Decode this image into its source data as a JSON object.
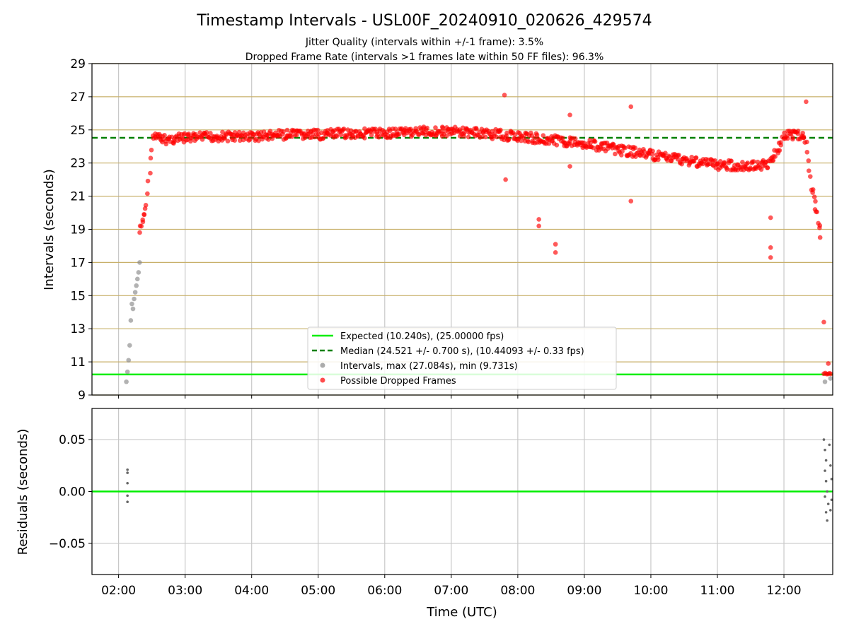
{
  "chart_data": [
    {
      "type": "scatter",
      "title": "Timestamp Intervals - USL00F_20240910_020626_429574",
      "subtitle_1": "Jitter Quality (intervals within +/-1 frame): 3.5%",
      "subtitle_2": "Dropped Frame Rate (intervals >1 frames late within 50 FF files): 96.3%",
      "xlabel": "",
      "ylabel": "Intervals (seconds)",
      "x_ticks": [
        "02:00",
        "03:00",
        "04:00",
        "05:00",
        "06:00",
        "07:00",
        "08:00",
        "09:00",
        "10:00",
        "11:00",
        "12:00"
      ],
      "y_ticks": [
        "9",
        "11",
        "13",
        "15",
        "17",
        "19",
        "21",
        "23",
        "25",
        "27",
        "29"
      ],
      "ylim": [
        9,
        29
      ],
      "xlim": [
        "01:36",
        "12:44"
      ],
      "grid": true,
      "colors": {
        "expected": "#00ee00",
        "median": "#008000",
        "intervals": "#888888",
        "dropped": "#ff0000",
        "hgrid": "#c8b06a",
        "vgrid": "#c8c8c8"
      },
      "legend": {
        "placement": "lower-center",
        "entries": [
          "Expected (10.240s), (25.00000 fps)",
          "Median (24.521 +/- 0.700 s), (10.44093 +/- 0.33 fps)",
          "Intervals, max (27.084s), min (9.731s)",
          "Possible Dropped Frames"
        ]
      },
      "expected_interval": 10.24,
      "median_interval": 24.521,
      "interval_points": [
        [
          "02:07",
          9.8
        ],
        [
          "02:08",
          10.4
        ],
        [
          "02:09",
          11.1
        ],
        [
          "02:10",
          12.0
        ],
        [
          "02:11",
          13.5
        ],
        [
          "02:12",
          14.5
        ],
        [
          "02:13",
          14.2
        ],
        [
          "02:14",
          14.8
        ],
        [
          "02:15",
          15.2
        ],
        [
          "02:16",
          15.6
        ],
        [
          "02:17",
          16.0
        ],
        [
          "02:18",
          16.4
        ],
        [
          "02:19",
          17.0
        ],
        [
          "12:37",
          9.8
        ],
        [
          "12:42",
          10.0
        ]
      ],
      "dropped_trend": [
        [
          "02:19",
          18.8
        ],
        [
          "02:22",
          19.5
        ],
        [
          "02:25",
          20.5
        ],
        [
          "02:28",
          22.5
        ],
        [
          "02:31",
          24.6
        ],
        [
          "02:40",
          24.4
        ],
        [
          "03:00",
          24.5
        ],
        [
          "03:30",
          24.6
        ],
        [
          "04:00",
          24.6
        ],
        [
          "04:30",
          24.7
        ],
        [
          "05:00",
          24.7
        ],
        [
          "05:30",
          24.8
        ],
        [
          "06:00",
          24.8
        ],
        [
          "06:30",
          24.9
        ],
        [
          "07:00",
          24.9
        ],
        [
          "07:30",
          24.8
        ],
        [
          "08:00",
          24.6
        ],
        [
          "08:30",
          24.4
        ],
        [
          "09:00",
          24.2
        ],
        [
          "09:30",
          23.8
        ],
        [
          "10:00",
          23.5
        ],
        [
          "10:30",
          23.2
        ],
        [
          "11:00",
          22.9
        ],
        [
          "11:30",
          22.8
        ],
        [
          "11:45",
          22.9
        ],
        [
          "11:55",
          23.8
        ],
        [
          "12:00",
          24.7
        ],
        [
          "12:15",
          24.7
        ],
        [
          "12:20",
          24.3
        ],
        [
          "12:25",
          21.5
        ],
        [
          "12:30",
          19.8
        ],
        [
          "12:34",
          18.5
        ]
      ],
      "dropped_outliers": [
        [
          "07:48",
          27.1
        ],
        [
          "07:49",
          22.0
        ],
        [
          "08:19",
          19.6
        ],
        [
          "08:19",
          19.2
        ],
        [
          "08:34",
          18.1
        ],
        [
          "08:34",
          17.6
        ],
        [
          "08:47",
          25.9
        ],
        [
          "08:47",
          22.8
        ],
        [
          "09:42",
          26.4
        ],
        [
          "09:42",
          20.7
        ],
        [
          "11:48",
          19.7
        ],
        [
          "11:48",
          17.9
        ],
        [
          "11:48",
          17.3
        ],
        [
          "12:20",
          26.7
        ],
        [
          "12:36",
          13.4
        ],
        [
          "12:40",
          10.9
        ]
      ],
      "dropped_tail": [
        [
          "12:36",
          10.3
        ],
        [
          "12:43",
          10.3
        ]
      ]
    },
    {
      "type": "scatter",
      "title": "",
      "xlabel": "Time (UTC)",
      "ylabel": "Residuals (seconds)",
      "x_ticks": [
        "02:00",
        "03:00",
        "04:00",
        "05:00",
        "06:00",
        "07:00",
        "08:00",
        "09:00",
        "10:00",
        "11:00",
        "12:00"
      ],
      "y_ticks": [
        "0.05",
        "0.00",
        "−0.05"
      ],
      "ylim": [
        -0.08,
        0.08
      ],
      "grid": true,
      "zero_line_color": "#00ee00",
      "residual_points": [
        [
          "02:08",
          0.021
        ],
        [
          "02:08",
          0.018
        ],
        [
          "02:08",
          0.008
        ],
        [
          "02:08",
          -0.004
        ],
        [
          "02:08",
          -0.01
        ],
        [
          "12:36",
          0.05
        ],
        [
          "12:37",
          0.04
        ],
        [
          "12:38",
          0.03
        ],
        [
          "12:37",
          0.02
        ],
        [
          "12:38",
          0.01
        ],
        [
          "12:39",
          0.0
        ],
        [
          "12:37",
          -0.005
        ],
        [
          "12:40",
          -0.012
        ],
        [
          "12:38",
          -0.02
        ],
        [
          "12:39",
          -0.028
        ],
        [
          "12:41",
          0.045
        ],
        [
          "12:42",
          0.025
        ],
        [
          "12:43",
          0.012
        ],
        [
          "12:43",
          -0.008
        ],
        [
          "12:42",
          -0.018
        ]
      ]
    }
  ]
}
